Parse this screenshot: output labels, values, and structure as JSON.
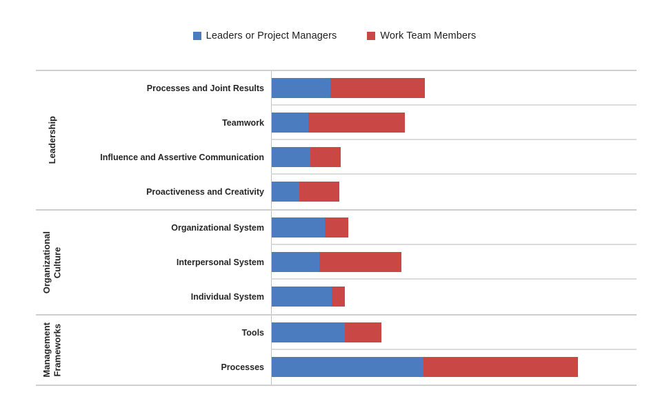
{
  "chart_data": {
    "type": "bar",
    "orientation": "horizontal",
    "stacked": true,
    "title": "",
    "xlabel": "",
    "ylabel": "",
    "xlim": [
      0,
      100
    ],
    "x_axis_labels_visible": false,
    "grid": "horizontal-row-separators",
    "legend_position": "top-center",
    "categories": [
      "Processes and Joint Results",
      "Teamwork",
      "Influence and Assertive Communication",
      "Proactiveness and Creativity",
      "Organizational System",
      "Interpersonal System",
      "Individual System",
      "Tools",
      "Processes"
    ],
    "series": [
      {
        "name": "Leaders or Project Managers",
        "color": "#4A7CBF",
        "values": [
          16,
          10,
          10.5,
          7.5,
          14.5,
          13,
          16.5,
          20,
          41.5
        ]
      },
      {
        "name": "Work Team Members",
        "color": "#C94744",
        "values": [
          26,
          26.5,
          8.5,
          11,
          6.5,
          22.5,
          3.5,
          10,
          42.5
        ]
      }
    ],
    "groups": [
      {
        "label": "Leadership",
        "category_indexes": [
          0,
          1,
          2,
          3
        ]
      },
      {
        "label": "Organizational\nCulture",
        "category_indexes": [
          4,
          5,
          6
        ]
      },
      {
        "label": "Management\nFrameworks",
        "category_indexes": [
          7,
          8
        ]
      }
    ]
  },
  "colors": {
    "background": "#FFFFFF",
    "group_boundary_line": "#CFCFCF",
    "row_separator_line": "#DCDCDC",
    "axis_line": "#C0C0C0",
    "text": "#262626"
  }
}
